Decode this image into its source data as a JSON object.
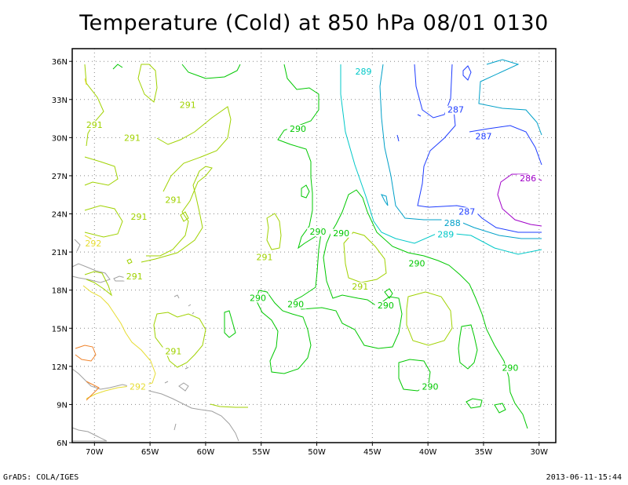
{
  "title": "Temperature (Cold) at 850 hPa 08/01 0130",
  "footer_left": "GrADS: COLA/IGES",
  "footer_right": "2013-06-11-15:44",
  "map": {
    "lon_range": [
      -72,
      -28.5
    ],
    "lat_range": [
      6,
      37
    ],
    "lon_ticks": [
      {
        "value": -70,
        "label": "70W"
      },
      {
        "value": -65,
        "label": "65W"
      },
      {
        "value": -60,
        "label": "60W"
      },
      {
        "value": -55,
        "label": "55W"
      },
      {
        "value": -50,
        "label": "50W"
      },
      {
        "value": -45,
        "label": "45W"
      },
      {
        "value": -40,
        "label": "40W"
      },
      {
        "value": -35,
        "label": "35W"
      },
      {
        "value": -30,
        "label": "30W"
      }
    ],
    "lat_ticks": [
      {
        "value": 6,
        "label": "6N"
      },
      {
        "value": 9,
        "label": "9N"
      },
      {
        "value": 12,
        "label": "12N"
      },
      {
        "value": 15,
        "label": "15N"
      },
      {
        "value": 18,
        "label": "18N"
      },
      {
        "value": 21,
        "label": "21N"
      },
      {
        "value": 24,
        "label": "24N"
      },
      {
        "value": 27,
        "label": "27N"
      },
      {
        "value": 30,
        "label": "30N"
      },
      {
        "value": 33,
        "label": "33N"
      },
      {
        "value": 36,
        "label": "36N"
      }
    ],
    "grid": true,
    "colors": {
      "c286": "#a000c8",
      "c287": "#1e3cff",
      "c288": "#00a0c8",
      "c289": "#00c8c8",
      "c290": "#00c800",
      "c291": "#a0d200",
      "c292": "#e6dc32",
      "c293": "#f08228",
      "coast": "#a0a0a0",
      "grid": "#888888"
    },
    "contour_labels": [
      {
        "text": "289",
        "lon": -45.8,
        "lat": 35.2,
        "color_key": "c289"
      },
      {
        "text": "287",
        "lon": -37.5,
        "lat": 32.2,
        "color_key": "c287"
      },
      {
        "text": "287",
        "lon": -35.0,
        "lat": 30.1,
        "color_key": "c287"
      },
      {
        "text": "286",
        "lon": -31.0,
        "lat": 26.8,
        "color_key": "c286"
      },
      {
        "text": "287",
        "lon": -36.5,
        "lat": 24.2,
        "color_key": "c287"
      },
      {
        "text": "288",
        "lon": -37.8,
        "lat": 23.3,
        "color_key": "c288"
      },
      {
        "text": "289",
        "lon": -38.4,
        "lat": 22.4,
        "color_key": "c289"
      },
      {
        "text": "290",
        "lon": -51.7,
        "lat": 30.7,
        "color_key": "c290"
      },
      {
        "text": "290",
        "lon": -49.9,
        "lat": 22.6,
        "color_key": "c290"
      },
      {
        "text": "290",
        "lon": -47.8,
        "lat": 22.5,
        "color_key": "c290"
      },
      {
        "text": "290",
        "lon": -41.0,
        "lat": 20.1,
        "color_key": "c290"
      },
      {
        "text": "290",
        "lon": -55.3,
        "lat": 17.4,
        "color_key": "c290"
      },
      {
        "text": "290",
        "lon": -51.9,
        "lat": 16.9,
        "color_key": "c290"
      },
      {
        "text": "290",
        "lon": -43.8,
        "lat": 16.8,
        "color_key": "c290"
      },
      {
        "text": "290",
        "lon": -32.6,
        "lat": 11.9,
        "color_key": "c290"
      },
      {
        "text": "290",
        "lon": -39.8,
        "lat": 10.4,
        "color_key": "c290"
      },
      {
        "text": "291",
        "lon": -61.6,
        "lat": 32.6,
        "color_key": "c291"
      },
      {
        "text": "291",
        "lon": -70.0,
        "lat": 31.0,
        "color_key": "c291"
      },
      {
        "text": "291",
        "lon": -66.6,
        "lat": 30.0,
        "color_key": "c291"
      },
      {
        "text": "291",
        "lon": -62.9,
        "lat": 25.1,
        "color_key": "c291"
      },
      {
        "text": "291",
        "lon": -66.0,
        "lat": 23.8,
        "color_key": "c291"
      },
      {
        "text": "291",
        "lon": -54.7,
        "lat": 20.6,
        "color_key": "c291"
      },
      {
        "text": "291",
        "lon": -66.4,
        "lat": 19.1,
        "color_key": "c291"
      },
      {
        "text": "291",
        "lon": -46.1,
        "lat": 18.3,
        "color_key": "c291"
      },
      {
        "text": "291",
        "lon": -62.9,
        "lat": 13.2,
        "color_key": "c291"
      },
      {
        "text": "292",
        "lon": -70.1,
        "lat": 21.7,
        "color_key": "c292"
      },
      {
        "text": "292",
        "lon": -66.1,
        "lat": 10.4,
        "color_key": "c292"
      }
    ]
  }
}
